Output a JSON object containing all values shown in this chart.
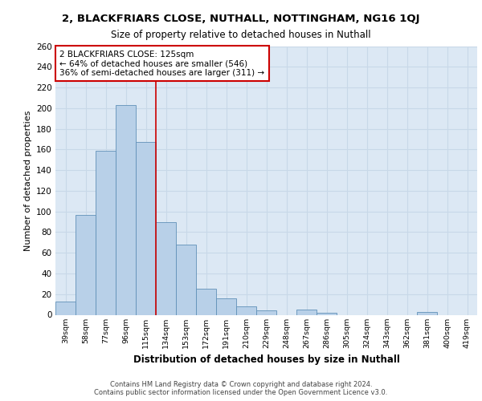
{
  "title1": "2, BLACKFRIARS CLOSE, NUTHALL, NOTTINGHAM, NG16 1QJ",
  "title2": "Size of property relative to detached houses in Nuthall",
  "xlabel": "Distribution of detached houses by size in Nuthall",
  "ylabel": "Number of detached properties",
  "categories": [
    "39sqm",
    "58sqm",
    "77sqm",
    "96sqm",
    "115sqm",
    "134sqm",
    "153sqm",
    "172sqm",
    "191sqm",
    "210sqm",
    "229sqm",
    "248sqm",
    "267sqm",
    "286sqm",
    "305sqm",
    "324sqm",
    "343sqm",
    "362sqm",
    "381sqm",
    "400sqm",
    "419sqm"
  ],
  "values": [
    13,
    97,
    159,
    203,
    167,
    90,
    68,
    25,
    16,
    8,
    4,
    0,
    5,
    2,
    0,
    0,
    0,
    0,
    3,
    0,
    0
  ],
  "bar_color": "#b8d0e8",
  "bar_edge_color": "#6090b8",
  "vline_x": 4.5,
  "vline_color": "#cc0000",
  "annotation_line1": "2 BLACKFRIARS CLOSE: 125sqm",
  "annotation_line2": "← 64% of detached houses are smaller (546)",
  "annotation_line3": "36% of semi-detached houses are larger (311) →",
  "annotation_box_color": "#ffffff",
  "annotation_box_edge": "#cc0000",
  "ylim": [
    0,
    260
  ],
  "yticks": [
    0,
    20,
    40,
    60,
    80,
    100,
    120,
    140,
    160,
    180,
    200,
    220,
    240,
    260
  ],
  "grid_color": "#c8d8e8",
  "bg_color": "#dce8f4",
  "footer1": "Contains HM Land Registry data © Crown copyright and database right 2024.",
  "footer2": "Contains public sector information licensed under the Open Government Licence v3.0."
}
